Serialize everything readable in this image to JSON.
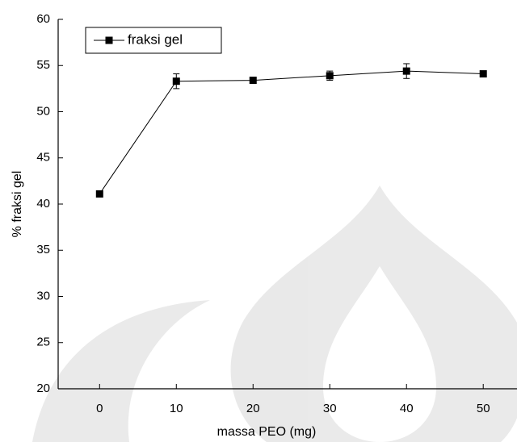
{
  "chart_data": {
    "type": "line",
    "x_label": "massa PEO (mg)",
    "y_label": "% fraksi gel",
    "x": [
      0,
      10,
      20,
      30,
      40,
      50
    ],
    "series": [
      {
        "name": "fraksi gel",
        "color": "#000000",
        "values": [
          41.1,
          53.3,
          53.4,
          53.9,
          54.4,
          54.1
        ],
        "errors": [
          0.1,
          0.8,
          0.2,
          0.5,
          0.8,
          0.3
        ]
      }
    ],
    "xlim": [
      -5.4,
      54.4
    ],
    "ylim": [
      20,
      60
    ],
    "xticks": [
      0,
      10,
      20,
      30,
      40,
      50
    ],
    "yticks": [
      20,
      25,
      30,
      35,
      40,
      45,
      50,
      55,
      60
    ],
    "grid": false,
    "legend": "upper-left",
    "legend_text_color": "#ff0000"
  }
}
